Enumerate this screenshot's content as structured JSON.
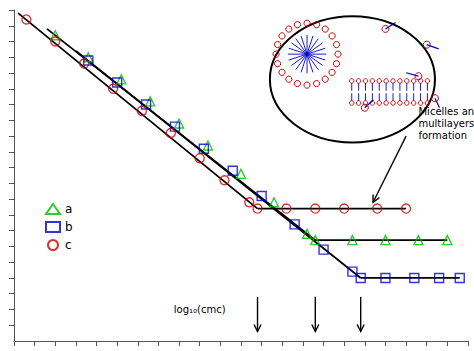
{
  "chart_data": {
    "type": "scatter",
    "tick_labels": false,
    "grid": false,
    "legend": "lower left",
    "xlim": [
      0,
      11
    ],
    "ylim": [
      -0.5,
      10
    ],
    "xticks": [
      0,
      0.5,
      1,
      1.5,
      2,
      2.5,
      3,
      3.5,
      4,
      4.5,
      5,
      5.5,
      6,
      6.5,
      7,
      7.5,
      8,
      8.5,
      9,
      9.5,
      10,
      10.5,
      11
    ],
    "yticks": [
      0,
      0.5,
      1,
      1.5,
      2,
      2.5,
      3,
      3.5,
      4,
      4.5,
      5,
      5.5,
      6,
      6.5,
      7,
      7.5,
      8,
      8.5,
      9,
      9.5,
      10
    ],
    "series": [
      {
        "type": "line",
        "color": "#000000",
        "x": [
          0.1,
          5.9
        ],
        "y": [
          9.9,
          3.7
        ]
      },
      {
        "type": "line",
        "color": "#000000",
        "x": [
          0.8,
          7.3
        ],
        "y": [
          9.4,
          2.7
        ]
      },
      {
        "type": "line",
        "color": "#000000",
        "x": [
          1.5,
          8.4
        ],
        "y": [
          8.7,
          1.5
        ]
      },
      {
        "type": "line",
        "color": "#000000",
        "x": [
          7.3,
          8.2,
          9.0,
          9.8,
          10.5
        ],
        "y": [
          2.7,
          2.7,
          2.7,
          2.7,
          2.7
        ]
      },
      {
        "type": "line",
        "color": "#000000",
        "x": [
          8.4,
          9.0,
          9.7,
          10.3,
          10.8
        ],
        "y": [
          1.5,
          1.5,
          1.5,
          1.5,
          1.5
        ]
      },
      {
        "type": "line",
        "color": "#000000",
        "x": [
          5.9,
          6.6,
          7.3,
          8.0,
          8.8,
          9.5
        ],
        "y": [
          3.7,
          3.7,
          3.7,
          3.7,
          3.7,
          3.7
        ]
      },
      {
        "type": "scatter",
        "name": "a",
        "marker": "triangle",
        "color": "#00bb00",
        "x": [
          1.0,
          1.8,
          2.6,
          3.3,
          4.0,
          4.7,
          5.5,
          6.3,
          7.1,
          7.3,
          8.2,
          9.0,
          9.8,
          10.5
        ],
        "y": [
          9.2,
          8.5,
          7.8,
          7.1,
          6.4,
          5.7,
          4.8,
          3.9,
          2.9,
          2.7,
          2.7,
          2.7,
          2.7,
          2.7
        ]
      },
      {
        "type": "scatter",
        "name": "b",
        "marker": "square",
        "color": "#0000cc",
        "x": [
          1.8,
          2.5,
          3.2,
          3.9,
          4.6,
          5.3,
          6.0,
          6.8,
          7.5,
          8.2,
          8.4,
          9.0,
          9.7,
          10.3,
          10.8
        ],
        "y": [
          8.4,
          7.7,
          7.0,
          6.3,
          5.6,
          4.9,
          4.1,
          3.2,
          2.4,
          1.7,
          1.5,
          1.5,
          1.5,
          1.5,
          1.5
        ]
      },
      {
        "type": "scatter",
        "name": "c",
        "marker": "circle",
        "color": "#cc0000",
        "x": [
          0.3,
          1.0,
          1.7,
          2.4,
          3.1,
          3.8,
          4.5,
          5.1,
          5.7,
          5.9,
          6.6,
          7.3,
          8.0,
          8.8,
          9.5
        ],
        "y": [
          9.7,
          9.0,
          8.3,
          7.5,
          6.8,
          6.1,
          5.3,
          4.6,
          3.9,
          3.7,
          3.7,
          3.7,
          3.7,
          3.7,
          3.7
        ]
      }
    ],
    "arrows": [
      {
        "from": [
          5.9,
          0.9
        ],
        "to": [
          5.9,
          -0.2
        ]
      },
      {
        "from": [
          7.3,
          0.9
        ],
        "to": [
          7.3,
          -0.2
        ]
      },
      {
        "from": [
          8.4,
          0.9
        ],
        "to": [
          8.4,
          -0.2
        ]
      },
      {
        "from": [
          9.5,
          6.0
        ],
        "to": [
          8.7,
          3.9
        ]
      }
    ],
    "arrow_color": "#000000",
    "cmc_label": {
      "text": "log₁₀(cmc)",
      "x": 4.5,
      "y": 0.5
    },
    "annotation": {
      "text": "Micelles and\nmultilayers\nformation",
      "x": 9.8,
      "y": 6.4
    },
    "text_color": "#000000",
    "inset": {
      "circle": {
        "cx": 8.2,
        "cy": 7.8,
        "r": 2.0,
        "color": "#000000"
      },
      "micelle": {
        "cx": 7.1,
        "cy": 8.6,
        "r": 0.75,
        "heads": 20
      },
      "bilayer": {
        "cx": 9.1,
        "cy": 7.4,
        "w": 2.0,
        "h": 0.7,
        "n": 12
      },
      "monomers": [
        [
          9.0,
          9.4,
          40
        ],
        [
          10.0,
          8.9,
          -25
        ],
        [
          9.8,
          7.9,
          160
        ],
        [
          8.5,
          6.9,
          50
        ],
        [
          10.2,
          7.2,
          -70
        ]
      ],
      "head_color": "#cc0000",
      "tail_color": "#0000cc"
    }
  }
}
